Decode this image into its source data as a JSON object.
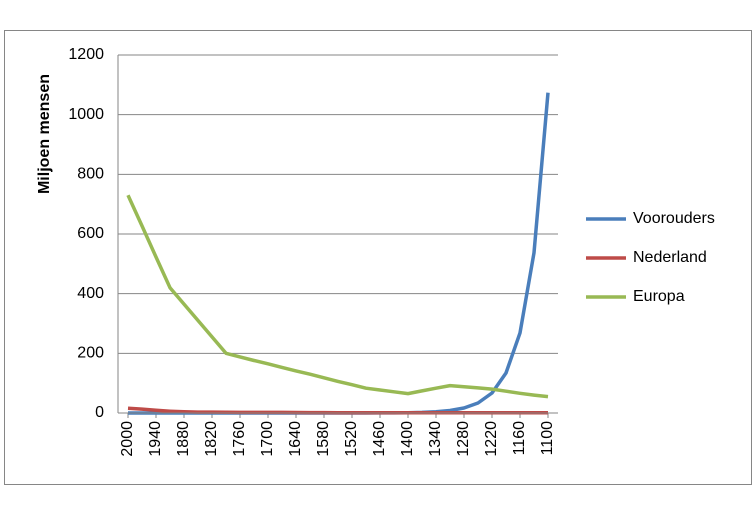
{
  "chart_data": {
    "type": "line",
    "y_label": "Miljoen mensen",
    "categories": [
      "2000",
      null,
      "1940",
      null,
      "1880",
      null,
      "1820",
      null,
      "1760",
      null,
      "1700",
      null,
      "1640",
      null,
      "1580",
      null,
      "1520",
      null,
      "1460",
      null,
      "1400",
      null,
      "1340",
      null,
      "1280",
      null,
      "1220",
      null,
      "1160",
      null,
      "1100"
    ],
    "series": [
      {
        "name": "Voorouders",
        "color": "#4a7ebb",
        "values": [
          0,
          0,
          0,
          0,
          0,
          0,
          0,
          0,
          0,
          0,
          0,
          0,
          0,
          0,
          0,
          0,
          0.1,
          0.1,
          0.3,
          0.5,
          1.0,
          2.1,
          4.2,
          8.4,
          16.8,
          33.6,
          67.1,
          134.2,
          268.4,
          536.9,
          1073.7
        ]
      },
      {
        "name": "Nederland",
        "color": "#be4b48",
        "values": [
          16,
          13,
          9,
          6,
          4,
          3,
          3,
          2.5,
          2,
          2,
          2,
          1.9,
          1.8,
          1.5,
          1.5,
          1,
          1,
          1,
          1,
          1,
          1,
          1,
          1,
          1,
          1,
          1,
          1,
          1,
          1,
          1,
          1
        ]
      },
      {
        "name": "Europa",
        "color": "#98b954",
        "values": [
          730,
          627,
          523,
          420,
          365,
          310,
          255,
          200,
          188,
          176,
          165,
          153,
          141,
          130,
          118,
          106,
          95,
          83,
          77,
          71,
          65,
          74,
          83,
          92,
          88,
          84,
          80,
          73,
          66,
          60,
          55
        ]
      }
    ],
    "ylim": [
      0,
      1200
    ],
    "yticks": [
      0,
      200,
      400,
      600,
      800,
      1000,
      1200
    ],
    "grid": true,
    "legend": "right"
  }
}
